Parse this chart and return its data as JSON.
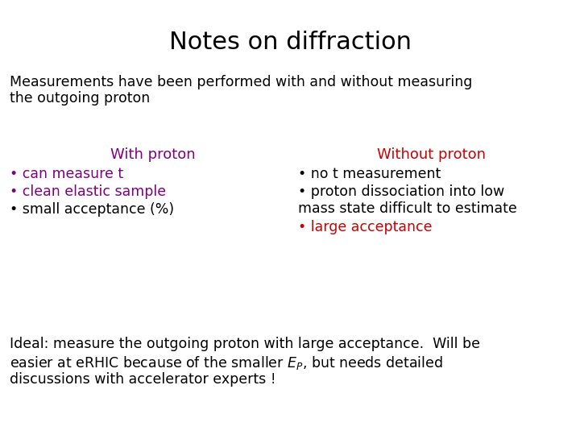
{
  "title": "Notes on diffraction",
  "title_fontsize": 22,
  "title_color": "#000000",
  "bg_color": "#ffffff",
  "subtitle_line1": "Measurements have been performed with and without measuring",
  "subtitle_line2": "the outgoing proton",
  "subtitle_fontsize": 12.5,
  "subtitle_color": "#000000",
  "with_proton_header": "With proton",
  "with_proton_header_color": "#800080",
  "with_proton_items": [
    {
      "text": "can measure t",
      "color": "#800080"
    },
    {
      "text": "clean elastic sample",
      "color": "#800080"
    },
    {
      "text": "small acceptance (%)",
      "color": "#000000"
    }
  ],
  "without_proton_header": "Without proton",
  "without_proton_header_color": "#cc0000",
  "without_proton_items": [
    {
      "text": "no t measurement",
      "color": "#000000",
      "lines": 1
    },
    {
      "text": "proton dissociation into low\nmass state difficult to estimate",
      "color": "#000000",
      "lines": 2
    },
    {
      "text": "large acceptance",
      "color": "#cc0000",
      "lines": 1
    }
  ],
  "footer_fontsize": 12.5,
  "footer_color": "#000000",
  "item_fontsize": 12.5,
  "header_fontsize": 13,
  "bullet": "• "
}
